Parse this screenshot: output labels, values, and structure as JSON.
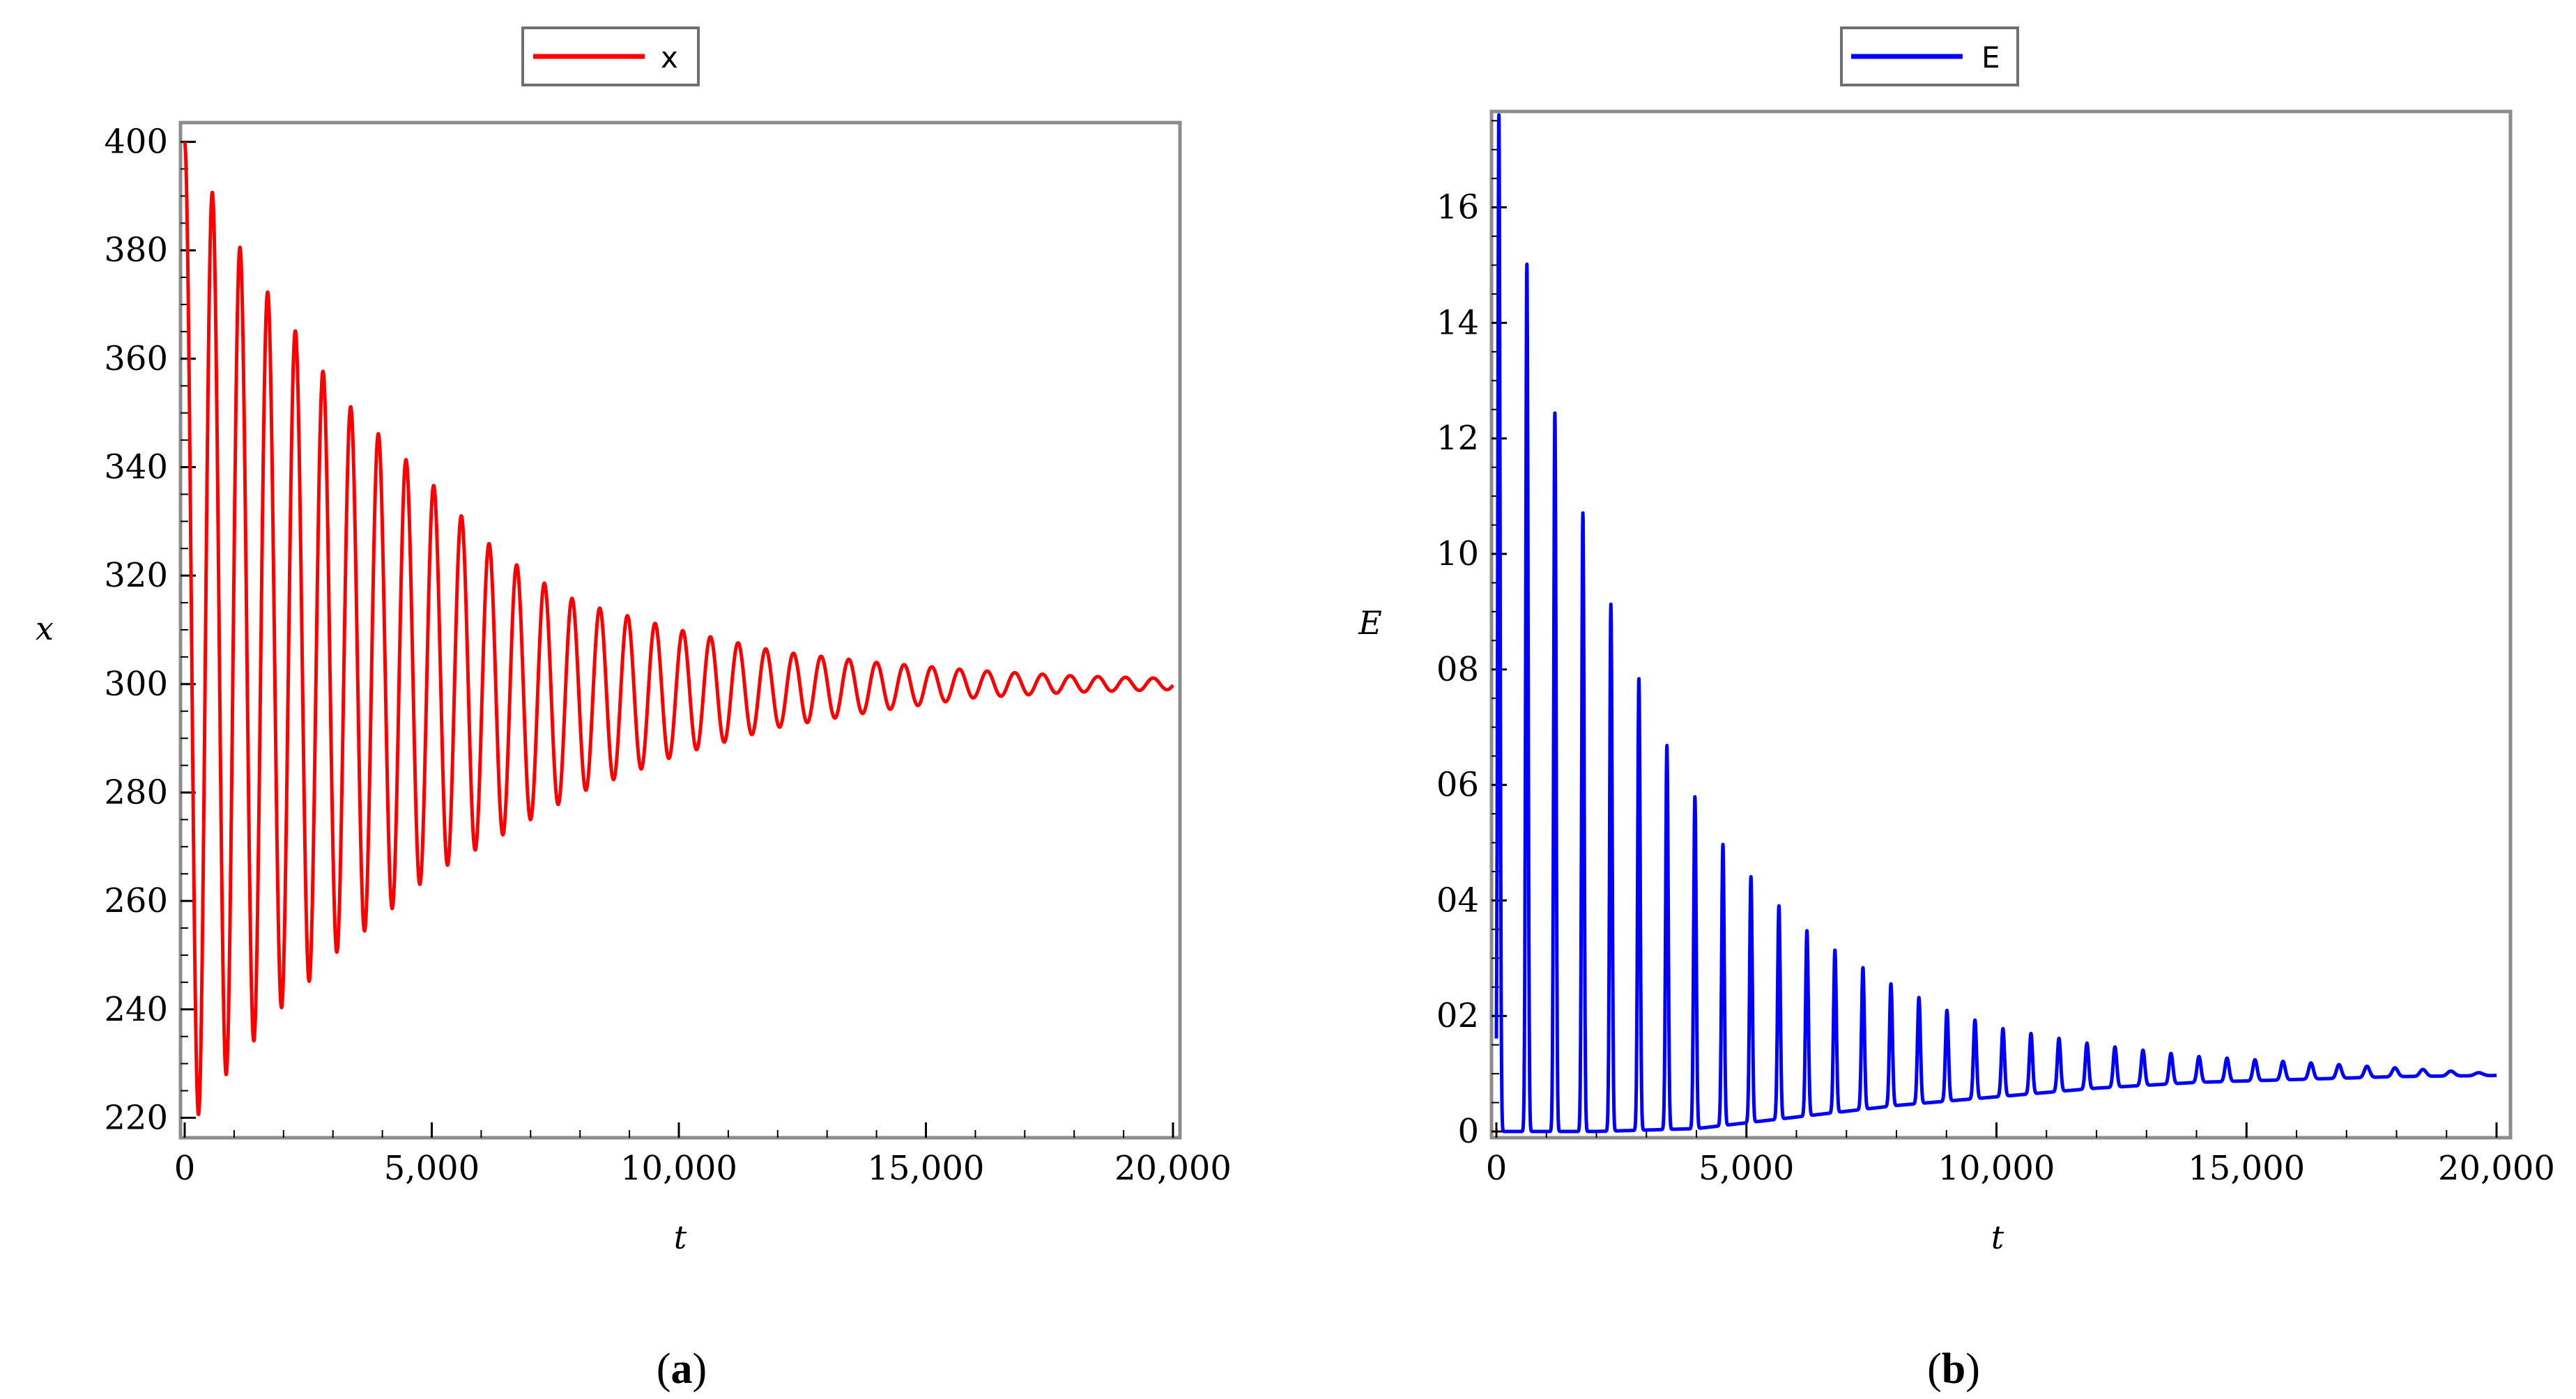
{
  "chart_data": [
    {
      "id": "a",
      "type": "line",
      "legend": [
        "x"
      ],
      "legend_placement": "top-center",
      "xlabel": "t",
      "ylabel": "x",
      "xlim": [
        0,
        20000
      ],
      "ylim": [
        218,
        402
      ],
      "xticks": [
        0,
        5000,
        10000,
        15000,
        20000
      ],
      "xtick_labels": [
        "0",
        "5,000",
        "10,000",
        "15,000",
        "20,000"
      ],
      "yticks": [
        220,
        240,
        260,
        280,
        300,
        320,
        340,
        360,
        380,
        400
      ],
      "ytick_labels": [
        "220",
        "240",
        "260",
        "280",
        "300",
        "320",
        "340",
        "360",
        "380",
        "400"
      ],
      "caption_open": "(",
      "caption_letter": "a",
      "caption_close": ")",
      "color": "#ff0000",
      "series": [
        {
          "name": "x",
          "model": "damped-oscillation",
          "start": 400,
          "equilibrium": 300,
          "period": 560,
          "peaks": [
            [
              0,
              400
            ],
            [
              600,
              390
            ],
            [
              1150,
              380
            ],
            [
              1700,
              372
            ],
            [
              2250,
              365
            ],
            [
              3150,
              353
            ],
            [
              4050,
              345
            ],
            [
              5000,
              337
            ],
            [
              6000,
              327
            ],
            [
              7000,
              320
            ],
            [
              8000,
              315
            ],
            [
              10000,
              310
            ],
            [
              12000,
              306
            ],
            [
              14000,
              304
            ],
            [
              16000,
              302.5
            ],
            [
              18000,
              301.5
            ],
            [
              20000,
              301
            ]
          ],
          "troughs": [
            [
              50,
              218
            ],
            [
              400,
              222
            ],
            [
              750,
              227
            ],
            [
              1300,
              233
            ],
            [
              1800,
              239
            ],
            [
              2400,
              244
            ],
            [
              3000,
              250
            ],
            [
              4000,
              257
            ],
            [
              5000,
              265
            ],
            [
              6000,
              270
            ],
            [
              7000,
              275
            ],
            [
              8000,
              280
            ],
            [
              10000,
              287
            ],
            [
              12000,
              292
            ],
            [
              14000,
              295
            ],
            [
              16000,
              297.5
            ],
            [
              18000,
              298.5
            ],
            [
              20000,
              299
            ]
          ]
        }
      ]
    },
    {
      "id": "b",
      "type": "line",
      "legend": [
        "E"
      ],
      "legend_placement": "top-center",
      "xlabel": "t",
      "ylabel": "E",
      "xlim": [
        0,
        20000
      ],
      "ylim": [
        0,
        17.6
      ],
      "xticks": [
        0,
        5000,
        10000,
        15000,
        20000
      ],
      "xtick_labels": [
        "0",
        "5,000",
        "10,000",
        "15,000",
        "20,000"
      ],
      "yticks": [
        0,
        2,
        4,
        6,
        8,
        10,
        12,
        14,
        16
      ],
      "ytick_labels": [
        "0",
        "02",
        "04",
        "06",
        "08",
        "10",
        "12",
        "14",
        "16"
      ],
      "caption_open": "(",
      "caption_letter": "b",
      "caption_close": ")",
      "color": "#0000ff",
      "series": [
        {
          "name": "E",
          "model": "damped-spikes",
          "period": 560,
          "peaks": [
            [
              50,
              17.6
            ],
            [
              700,
              14.6
            ],
            [
              1200,
              12.3
            ],
            [
              1800,
              10.5
            ],
            [
              2300,
              9.1
            ],
            [
              2800,
              7.95
            ],
            [
              3250,
              6.95
            ],
            [
              3700,
              6.2
            ],
            [
              4500,
              5.0
            ],
            [
              5200,
              4.3
            ],
            [
              6000,
              3.6
            ],
            [
              7000,
              3.0
            ],
            [
              8000,
              2.5
            ],
            [
              9000,
              2.1
            ],
            [
              10000,
              1.8
            ],
            [
              12000,
              1.5
            ],
            [
              14000,
              1.3
            ],
            [
              16000,
              1.2
            ],
            [
              18000,
              1.1
            ],
            [
              20000,
              1.0
            ]
          ],
          "troughs": [
            [
              50,
              0
            ],
            [
              2000,
              0
            ],
            [
              4000,
              0.05
            ],
            [
              6000,
              0.25
            ],
            [
              8000,
              0.45
            ],
            [
              10000,
              0.6
            ],
            [
              12000,
              0.75
            ],
            [
              14000,
              0.85
            ],
            [
              16000,
              0.9
            ],
            [
              18000,
              0.95
            ],
            [
              20000,
              0.97
            ]
          ]
        }
      ]
    }
  ]
}
